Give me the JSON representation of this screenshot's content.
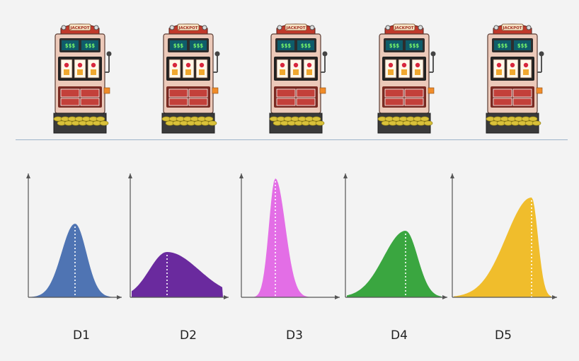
{
  "machines": [
    {
      "sign": "JACKPOT",
      "display_left": "$$$",
      "display_right": "$$$"
    },
    {
      "sign": "JACKPOT",
      "display_left": "$$$",
      "display_right": "$$$"
    },
    {
      "sign": "JACKPOT",
      "display_left": "$$$",
      "display_right": "$$$"
    },
    {
      "sign": "JACKPOT",
      "display_left": "$$$",
      "display_right": "$$$"
    },
    {
      "sign": "JACKPOT",
      "display_left": "$$$",
      "display_right": "$$$"
    }
  ],
  "distributions": [
    {
      "label": "D1",
      "color": "#4f74b3"
    },
    {
      "label": "D2",
      "color": "#6a2a9e"
    },
    {
      "label": "D3",
      "color": "#e36ee6"
    },
    {
      "label": "D4",
      "color": "#3aa640"
    },
    {
      "label": "D5",
      "color": "#f0bd2c"
    }
  ]
}
